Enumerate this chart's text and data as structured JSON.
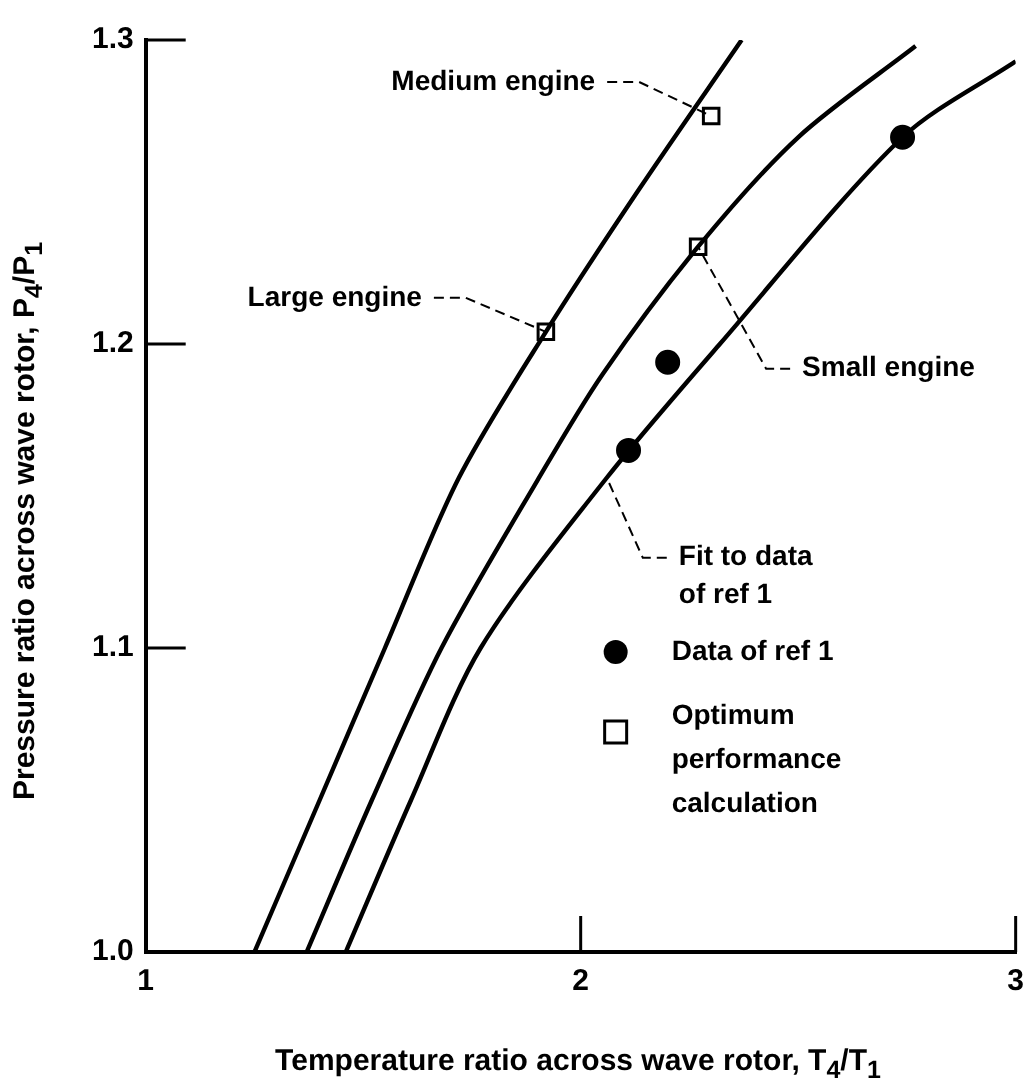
{
  "chart_data": {
    "type": "line",
    "xlabel": "Temperature ratio across wave rotor, T$_{4}$/T$_{1}$",
    "ylabel": "Pressure ratio across wave rotor, P$_{4}$/P$_{1}$",
    "xlim": [
      1,
      3
    ],
    "ylim": [
      1,
      1.3
    ],
    "xticks": [
      1,
      2,
      3
    ],
    "yticks": [
      {
        "value": 1,
        "label": "1.0"
      },
      1.1,
      1.2,
      1.3
    ],
    "grid": false,
    "legend": "bottom right",
    "series": [
      {
        "color": "#000000",
        "marker": "none",
        "x": [
          1.25,
          1.4,
          1.55,
          1.72,
          1.92,
          2.13,
          2.37
        ],
        "values": [
          1.0,
          1.05,
          1.1,
          1.156,
          1.204,
          1.25,
          1.3
        ]
      },
      {
        "color": "#000000",
        "marker": "none",
        "x": [
          1.37,
          1.52,
          1.68,
          1.9,
          2.05,
          2.27,
          2.5,
          2.77
        ],
        "values": [
          1.0,
          1.05,
          1.1,
          1.155,
          1.19,
          1.232,
          1.268,
          1.298
        ]
      },
      {
        "color": "#000000",
        "marker": "none",
        "x": [
          1.46,
          1.61,
          1.77,
          2.06,
          2.32,
          2.74,
          3.0
        ],
        "values": [
          1.0,
          1.05,
          1.1,
          1.156,
          1.2,
          1.268,
          1.293
        ]
      },
      {
        "type": "scatter",
        "name": "Data of ref 1",
        "color": "#000000",
        "marker": "circle",
        "x": [
          2.11,
          2.2,
          2.74
        ],
        "values": [
          1.165,
          1.194,
          1.268
        ]
      },
      {
        "type": "scatter",
        "name": "Optimum performance calculation",
        "color": "#000000",
        "marker": "square",
        "x": [
          1.92,
          2.27,
          2.3
        ],
        "values": [
          1.204,
          1.232,
          1.275
        ]
      }
    ],
    "annotations": [
      {
        "text": "Medium engine",
        "x": 2.3,
        "y": 1.275
      },
      {
        "text": "Large engine",
        "x": 1.92,
        "y": 1.204
      },
      {
        "text": "Small engine",
        "x": 2.27,
        "y": 1.232
      },
      {
        "text": "Fit to data\nof ref 1",
        "x": 2.06,
        "y": 1.156
      }
    ]
  }
}
